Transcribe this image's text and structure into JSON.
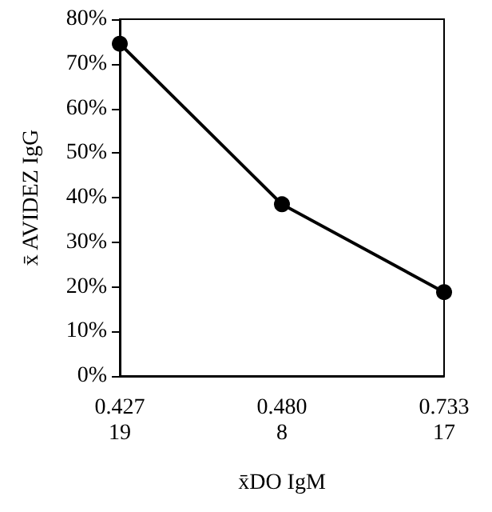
{
  "chart_data": {
    "type": "line",
    "xlabel": "x̄DO IgM",
    "ylabel": "x̄ AVIDEZ IgG",
    "categories": [
      "0.427\n19",
      "0.480\n8",
      "0.733\n17"
    ],
    "series": [
      {
        "color": "#000000",
        "values": [
          74.5,
          38.5,
          18.8
        ]
      }
    ],
    "ylim": [
      0,
      80
    ],
    "yticks": [
      {
        "value": 0,
        "label": "0%"
      },
      {
        "value": 10,
        "label": "10%"
      },
      {
        "value": 20,
        "label": "20%"
      },
      {
        "value": 30,
        "label": "30%"
      },
      {
        "value": 40,
        "label": "40%"
      },
      {
        "value": 50,
        "label": "50%"
      },
      {
        "value": 60,
        "label": "60%"
      },
      {
        "value": 70,
        "label": "70%"
      },
      {
        "value": 80,
        "label": "80%"
      }
    ],
    "grid": false,
    "marker": "circle",
    "line_style": "solid"
  }
}
